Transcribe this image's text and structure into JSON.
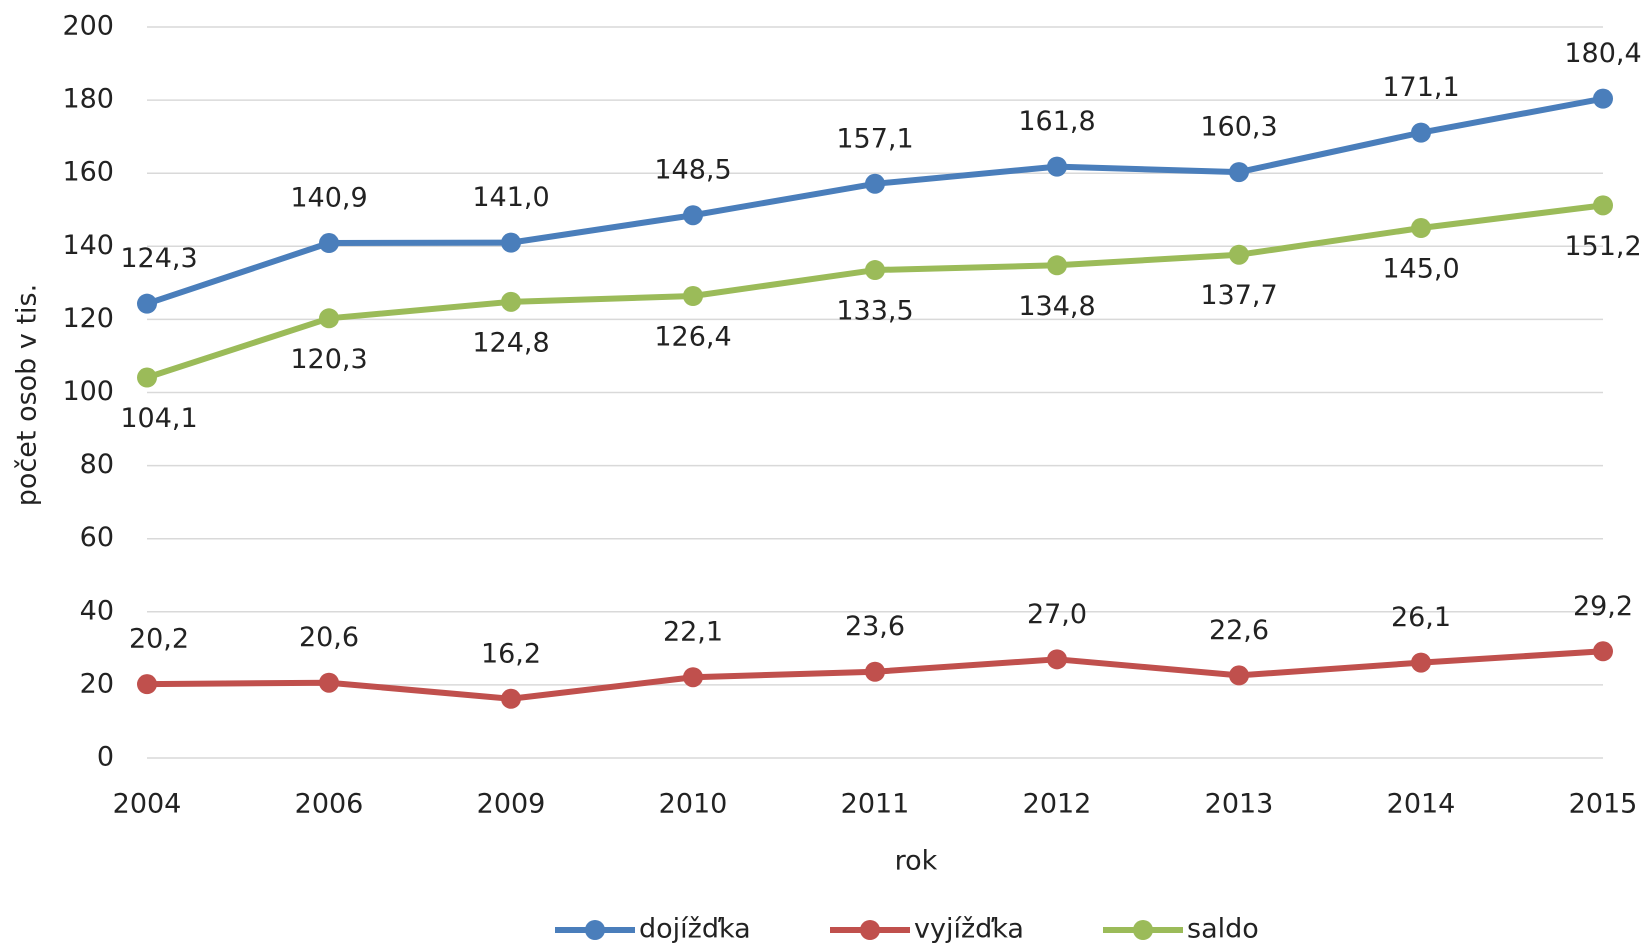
{
  "chart_data": {
    "type": "line",
    "x_label": "rok",
    "y_label": "počet osob  v tis.",
    "categories": [
      "2004",
      "2006",
      "2009",
      "2010",
      "2011",
      "2012",
      "2013",
      "2014",
      "2015"
    ],
    "series": [
      {
        "name": "dojížďka",
        "color": "#4a7ebb",
        "values": [
          124.3,
          140.9,
          141.0,
          148.5,
          157.1,
          161.8,
          160.3,
          171.1,
          180.4
        ],
        "value_labels": [
          "124,3",
          "140,9",
          "141,0",
          "148,5",
          "157,1",
          "161,8",
          "160,3",
          "171,1",
          "180,4"
        ]
      },
      {
        "name": "vyjížďka",
        "color": "#c0504d",
        "values": [
          20.2,
          20.6,
          16.2,
          22.1,
          23.6,
          27.0,
          22.6,
          26.1,
          29.2
        ],
        "value_labels": [
          "20,2",
          "20,6",
          "16,2",
          "22,1",
          "23,6",
          "27,0",
          "22,6",
          "26,1",
          "29,2"
        ]
      },
      {
        "name": "saldo",
        "color": "#9bbb59",
        "values": [
          104.1,
          120.3,
          124.8,
          126.4,
          133.5,
          134.8,
          137.7,
          145.0,
          151.2
        ],
        "value_labels": [
          "104,1",
          "120,3",
          "124,8",
          "126,4",
          "133,5",
          "134,8",
          "137,7",
          "145,0",
          "151,2"
        ]
      }
    ],
    "ylim": [
      0,
      200
    ],
    "yticks": [
      0,
      20,
      40,
      60,
      80,
      100,
      120,
      140,
      160,
      180,
      200
    ],
    "grid": true,
    "legend": "bottom"
  }
}
